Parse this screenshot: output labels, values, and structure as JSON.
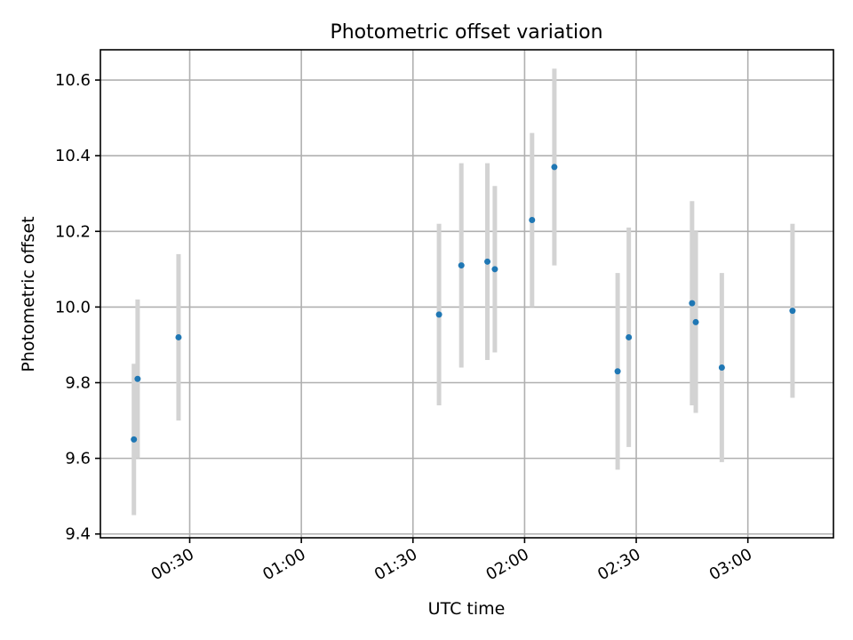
{
  "chart_data": {
    "type": "scatter",
    "title": "Photometric offset variation",
    "xlabel": "UTC time",
    "ylabel": "Photometric offset",
    "x_axis_type": "time",
    "xlim": [
      "00:06",
      "03:23"
    ],
    "ylim": [
      9.39,
      10.68
    ],
    "xticks": [
      "00:30",
      "01:00",
      "01:30",
      "02:00",
      "02:30",
      "03:00"
    ],
    "yticks": [
      "9.4",
      "9.6",
      "9.8",
      "10.0",
      "10.2",
      "10.4",
      "10.6"
    ],
    "grid": true,
    "legend": false,
    "colors": {
      "marker": "#1f77b4",
      "errorbar": "#d3d3d3",
      "grid": "#b0b0b0"
    },
    "points": [
      {
        "x": "00:15",
        "y": 9.65,
        "err": 0.2
      },
      {
        "x": "00:16",
        "y": 9.81,
        "err": 0.21
      },
      {
        "x": "00:27",
        "y": 9.92,
        "err": 0.22
      },
      {
        "x": "01:37",
        "y": 9.98,
        "err": 0.24
      },
      {
        "x": "01:43",
        "y": 10.11,
        "err": 0.27
      },
      {
        "x": "01:50",
        "y": 10.12,
        "err": 0.26
      },
      {
        "x": "01:52",
        "y": 10.1,
        "err": 0.22
      },
      {
        "x": "02:02",
        "y": 10.23,
        "err": 0.23
      },
      {
        "x": "02:08",
        "y": 10.37,
        "err": 0.26
      },
      {
        "x": "02:25",
        "y": 9.83,
        "err": 0.26
      },
      {
        "x": "02:28",
        "y": 9.92,
        "err": 0.29
      },
      {
        "x": "02:45",
        "y": 10.01,
        "err": 0.27
      },
      {
        "x": "02:46",
        "y": 9.96,
        "err": 0.24
      },
      {
        "x": "02:53",
        "y": 9.84,
        "err": 0.25
      },
      {
        "x": "03:12",
        "y": 9.99,
        "err": 0.23
      }
    ]
  }
}
